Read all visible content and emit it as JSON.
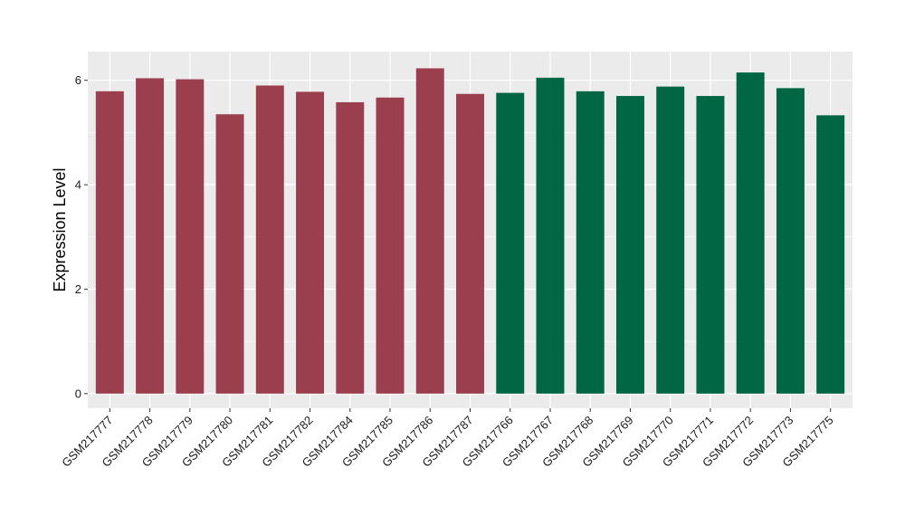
{
  "chart_data": {
    "type": "bar",
    "ylabel": "Expression Level",
    "xlabel": "",
    "title": "",
    "ylim": [
      -0.28,
      6.55
    ],
    "yticks": [
      0,
      2,
      4,
      6
    ],
    "grid": true,
    "categories": [
      "GSM217777",
      "GSM217778",
      "GSM217779",
      "GSM217780",
      "GSM217781",
      "GSM217782",
      "GSM217784",
      "GSM217785",
      "GSM217786",
      "GSM217787",
      "GSM217766",
      "GSM217767",
      "GSM217768",
      "GSM217769",
      "GSM217770",
      "GSM217771",
      "GSM217772",
      "GSM217773",
      "GSM217775"
    ],
    "values": [
      5.79,
      6.04,
      6.02,
      5.35,
      5.9,
      5.78,
      5.58,
      5.67,
      6.23,
      5.74,
      5.76,
      6.05,
      5.79,
      5.7,
      5.88,
      5.7,
      6.15,
      5.85,
      5.33
    ],
    "colors": [
      "#9b3f4f",
      "#9b3f4f",
      "#9b3f4f",
      "#9b3f4f",
      "#9b3f4f",
      "#9b3f4f",
      "#9b3f4f",
      "#9b3f4f",
      "#9b3f4f",
      "#9b3f4f",
      "#006643",
      "#006643",
      "#006643",
      "#006643",
      "#006643",
      "#006643",
      "#006643",
      "#006643",
      "#006643"
    ],
    "panel_color": "#ebebeb",
    "grid_color": "#ffffff"
  }
}
